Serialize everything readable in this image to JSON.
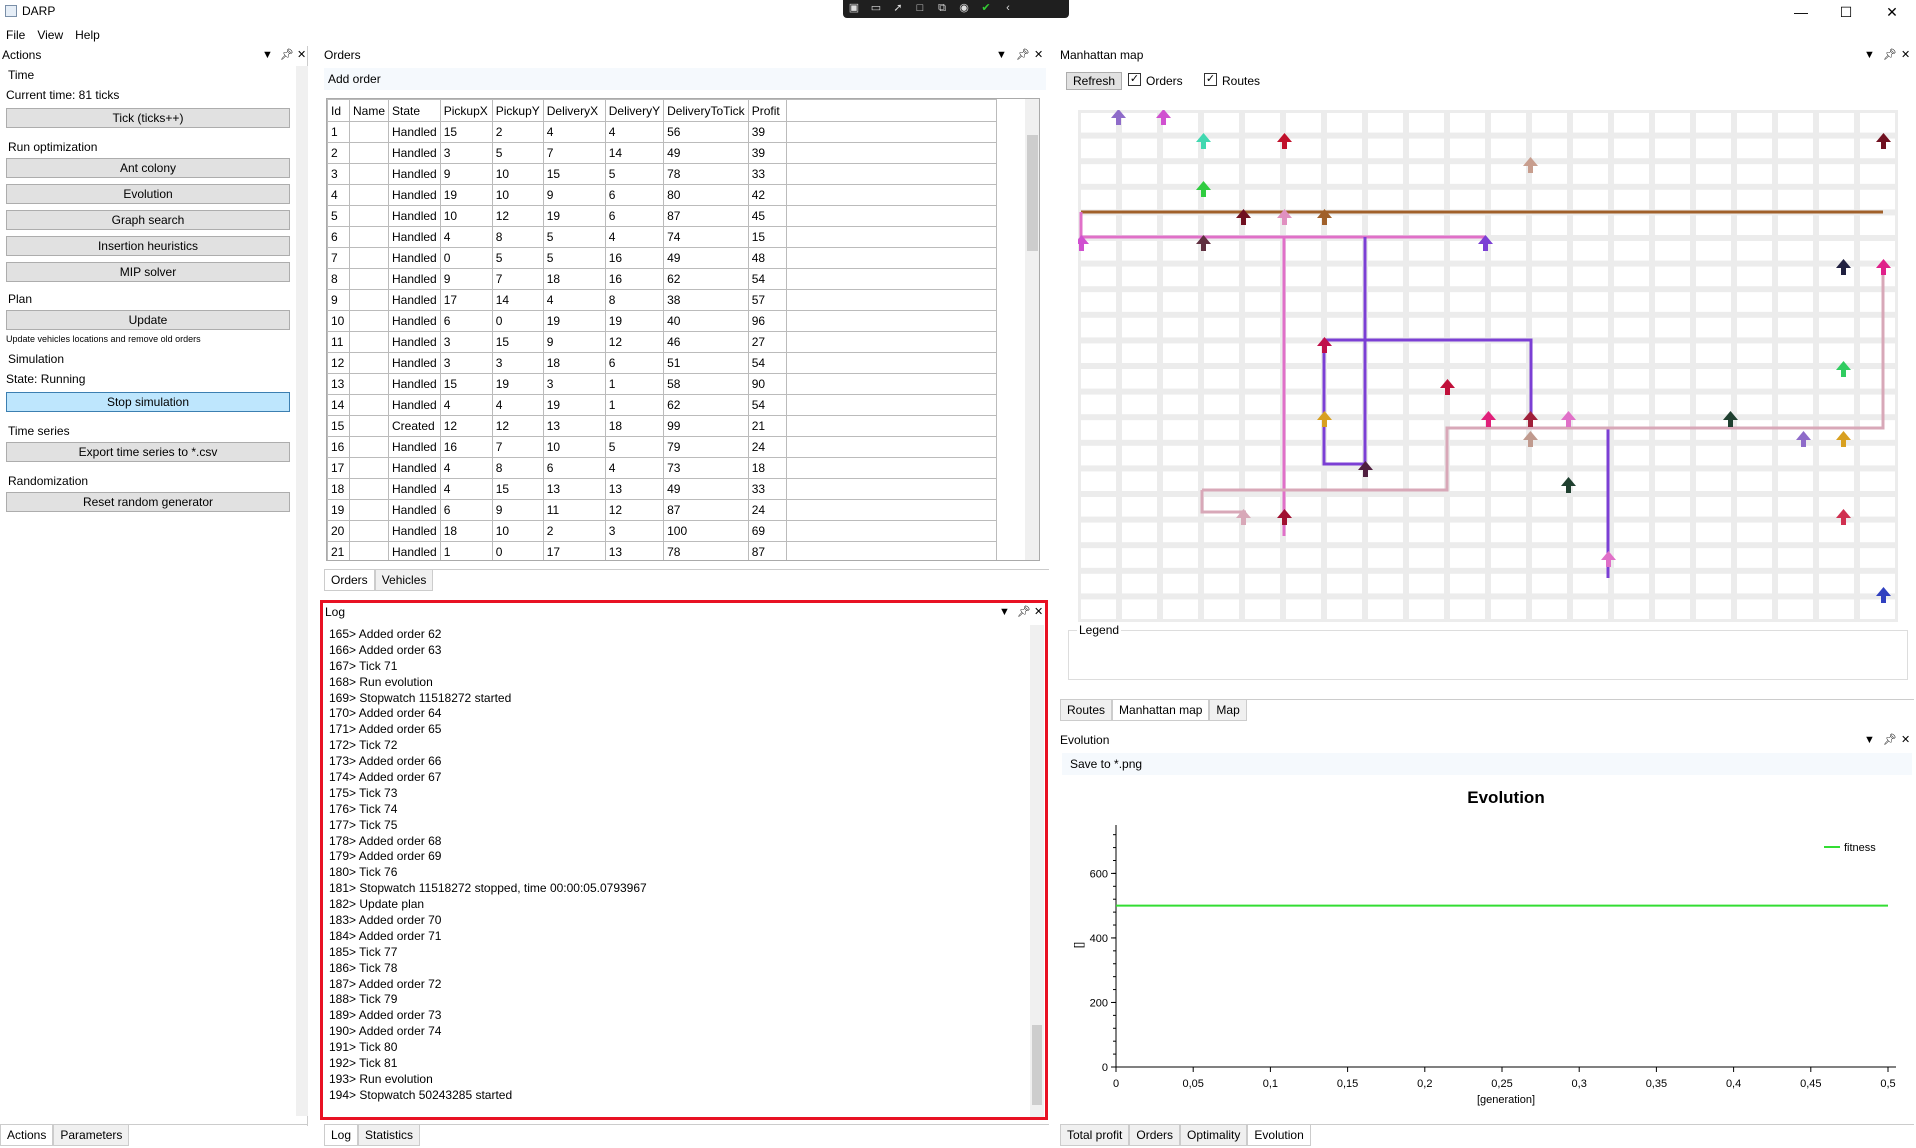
{
  "window": {
    "title": "DARP",
    "minimize": "—",
    "maximize": "☐",
    "close": "✕"
  },
  "menu": [
    "File",
    "View",
    "Help"
  ],
  "actions": {
    "title": "Actions",
    "time_group": "Time",
    "current_time": "Current time: 81 ticks",
    "tick_button": "Tick (ticks++)",
    "run_group": "Run optimization",
    "ant": "Ant colony",
    "evolution": "Evolution",
    "graph": "Graph search",
    "insertion": "Insertion heuristics",
    "mip": "MIP solver",
    "plan_group": "Plan",
    "update": "Update",
    "update_note": "Update vehicles locations and remove old orders",
    "sim_group": "Simulation",
    "state": "State: Running",
    "stop": "Stop simulation",
    "ts_group": "Time series",
    "export": "Export time series to *.csv",
    "rand_group": "Randomization",
    "reset": "Reset random generator",
    "tabs": [
      "Actions",
      "Parameters"
    ]
  },
  "orders": {
    "title": "Orders",
    "add_order": "Add order",
    "columns": [
      "Id",
      "Name",
      "State",
      "PickupX",
      "PickupY",
      "DeliveryX",
      "DeliveryY",
      "DeliveryToTick",
      "Profit"
    ],
    "rows": [
      [
        "1",
        "",
        "Handled",
        "15",
        "2",
        "4",
        "4",
        "56",
        "39"
      ],
      [
        "2",
        "",
        "Handled",
        "3",
        "5",
        "7",
        "14",
        "49",
        "39"
      ],
      [
        "3",
        "",
        "Handled",
        "9",
        "10",
        "15",
        "5",
        "78",
        "33"
      ],
      [
        "4",
        "",
        "Handled",
        "19",
        "10",
        "9",
        "6",
        "80",
        "42"
      ],
      [
        "5",
        "",
        "Handled",
        "10",
        "12",
        "19",
        "6",
        "87",
        "45"
      ],
      [
        "6",
        "",
        "Handled",
        "4",
        "8",
        "5",
        "4",
        "74",
        "15"
      ],
      [
        "7",
        "",
        "Handled",
        "0",
        "5",
        "5",
        "16",
        "49",
        "48"
      ],
      [
        "8",
        "",
        "Handled",
        "9",
        "7",
        "18",
        "16",
        "62",
        "54"
      ],
      [
        "9",
        "",
        "Handled",
        "17",
        "14",
        "4",
        "8",
        "38",
        "57"
      ],
      [
        "10",
        "",
        "Handled",
        "6",
        "0",
        "19",
        "19",
        "40",
        "96"
      ],
      [
        "11",
        "",
        "Handled",
        "3",
        "15",
        "9",
        "12",
        "46",
        "27"
      ],
      [
        "12",
        "",
        "Handled",
        "3",
        "3",
        "18",
        "6",
        "51",
        "54"
      ],
      [
        "13",
        "",
        "Handled",
        "15",
        "19",
        "3",
        "1",
        "58",
        "90"
      ],
      [
        "14",
        "",
        "Handled",
        "4",
        "4",
        "19",
        "1",
        "62",
        "54"
      ],
      [
        "15",
        "",
        "Created",
        "12",
        "12",
        "13",
        "18",
        "99",
        "21"
      ],
      [
        "16",
        "",
        "Handled",
        "16",
        "7",
        "10",
        "5",
        "79",
        "24"
      ],
      [
        "17",
        "",
        "Handled",
        "4",
        "8",
        "6",
        "4",
        "73",
        "18"
      ],
      [
        "18",
        "",
        "Handled",
        "4",
        "15",
        "13",
        "13",
        "49",
        "33"
      ],
      [
        "19",
        "",
        "Handled",
        "6",
        "9",
        "11",
        "12",
        "87",
        "24"
      ],
      [
        "20",
        "",
        "Handled",
        "18",
        "10",
        "2",
        "3",
        "100",
        "69"
      ],
      [
        "21",
        "",
        "Handled",
        "1",
        "0",
        "17",
        "13",
        "78",
        "87"
      ]
    ],
    "tabs": [
      "Orders",
      "Vehicles"
    ]
  },
  "log": {
    "title": "Log",
    "lines": [
      "165> Added order 62",
      "166> Added order 63",
      "167> Tick 71",
      "168> Run evolution",
      "169> Stopwatch 11518272 started",
      "170> Added order 64",
      "171> Added order 65",
      "172> Tick 72",
      "173> Added order 66",
      "174> Added order 67",
      "175> Tick 73",
      "176> Tick 74",
      "177> Tick 75",
      "178> Added order 68",
      "179> Added order 69",
      "180> Tick 76",
      "181> Stopwatch 11518272 stopped, time 00:00:05.0793967",
      "182> Update plan",
      "183> Added order 70",
      "184> Added order 71",
      "185> Tick 77",
      "186> Tick 78",
      "187> Added order 72",
      "188> Tick 79",
      "189> Added order 73",
      "190> Added order 74",
      "191> Tick 80",
      "192> Tick 81",
      "193> Run evolution",
      "194> Stopwatch 50243285 started"
    ],
    "tabs": [
      "Log",
      "Statistics"
    ]
  },
  "map": {
    "title": "Manhattan map",
    "refresh": "Refresh",
    "orders_cb": "Orders",
    "routes_cb": "Routes",
    "legend": "Legend",
    "tabs": [
      "Routes",
      "Manhattan map",
      "Map"
    ]
  },
  "evolution": {
    "title": "Evolution",
    "save": "Save to *.png",
    "tabs": [
      "Total profit",
      "Orders",
      "Optimality",
      "Evolution"
    ]
  },
  "chart_data": {
    "type": "line",
    "title": "Evolution",
    "xlabel": "[generation]",
    "ylabel": "[]",
    "xlim": [
      0,
      0.5
    ],
    "ylim": [
      0,
      750
    ],
    "x_ticks": [
      "0",
      "0,05",
      "0,1",
      "0,15",
      "0,2",
      "0,25",
      "0,3",
      "0,35",
      "0,4",
      "0,45",
      "0,5"
    ],
    "y_ticks": [
      "0",
      "200",
      "400",
      "600"
    ],
    "series": [
      {
        "name": "fitness",
        "color": "#33dd33",
        "x": [
          0,
          0.5
        ],
        "y": [
          500,
          500
        ]
      }
    ],
    "legend": "top-right"
  },
  "colors": {
    "accent": "#bee6fd",
    "highlight": "#e81123",
    "route_violet": "#7b3fd4",
    "route_pink": "#e070c8",
    "route_brown": "#a0602a",
    "route_rose": "#d8a8b8"
  }
}
